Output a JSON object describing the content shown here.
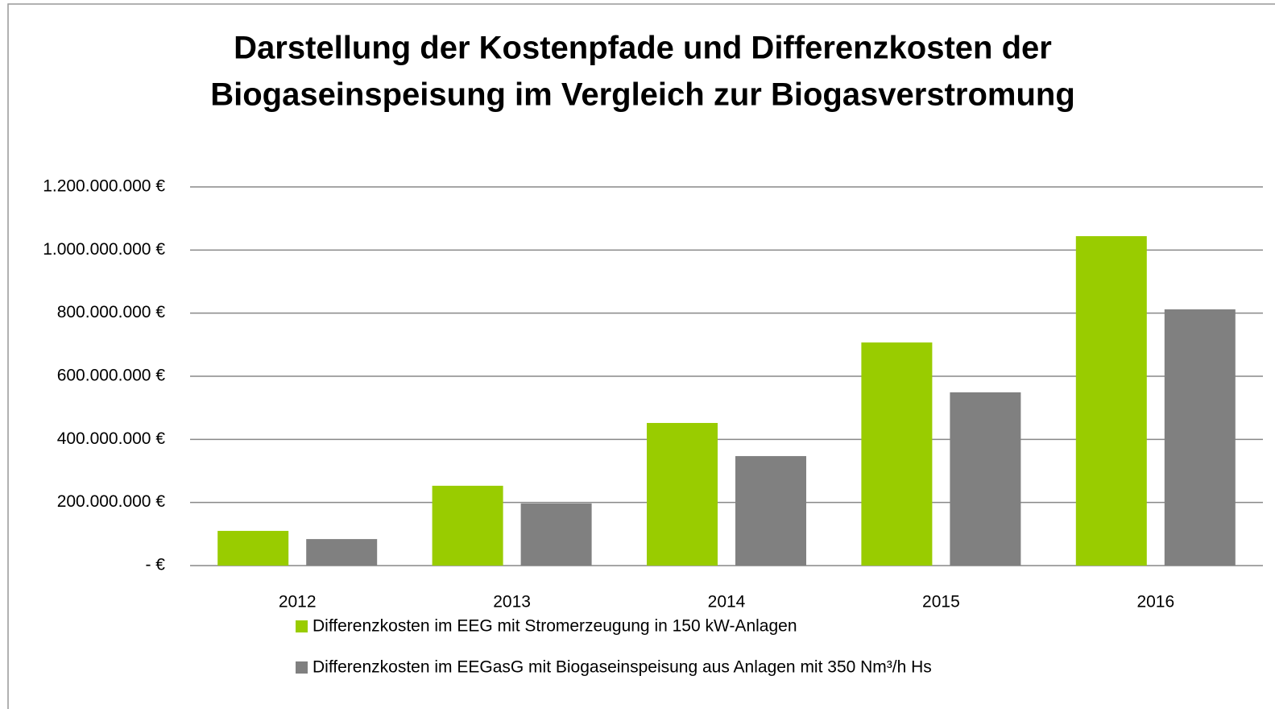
{
  "chart_data": {
    "type": "bar",
    "title": [
      "Darstellung der Kostenpfade und Differenzkosten der",
      "Biogaseinspeisung im Vergleich zur Biogasverstromung"
    ],
    "categories": [
      "2012",
      "2013",
      "2014",
      "2015",
      "2016"
    ],
    "series": [
      {
        "name": "Differenzkosten im EEG mit Stromerzeugung in 150 kW-Anlagen",
        "color": "#99cc00",
        "values": [
          110000000,
          253000000,
          452000000,
          707000000,
          1044000000
        ]
      },
      {
        "name": "Differenzkosten im EEGasG mit Biogaseinspeisung aus Anlagen mit 350 Nm³/h Hs",
        "color": "#808080",
        "values": [
          84000000,
          197000000,
          347000000,
          549000000,
          812000000
        ]
      }
    ],
    "ylim": [
      0,
      1200000000
    ],
    "yticks": [
      {
        "value": 0,
        "label": "-  €"
      },
      {
        "value": 200000000,
        "label": "200.000.000 €"
      },
      {
        "value": 400000000,
        "label": "400.000.000 €"
      },
      {
        "value": 600000000,
        "label": "600.000.000 €"
      },
      {
        "value": 800000000,
        "label": "800.000.000 €"
      },
      {
        "value": 1000000000,
        "label": "1.000.000.000 €"
      },
      {
        "value": 1200000000,
        "label": "1.200.000.000 €"
      }
    ],
    "grid": true
  }
}
